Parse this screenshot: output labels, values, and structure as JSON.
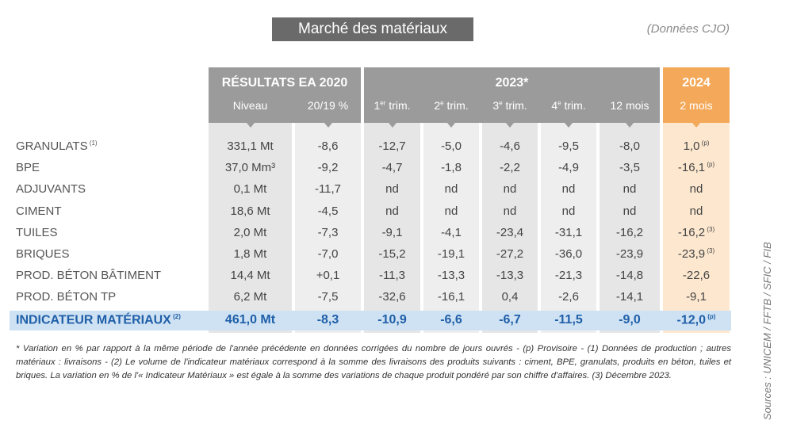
{
  "title": "Marché des matériaux",
  "source_note": "(Données CJO)",
  "sources": "Sources : UNICEM / FFTB / SFIC / FIB",
  "table": {
    "groups": [
      {
        "title": "RÉSULTATS EA 2020",
        "columns": [
          {
            "text": "Niveau"
          },
          {
            "text": "20/19 %"
          }
        ]
      },
      {
        "title": "2023*",
        "columns": [
          {
            "text": "1",
            "sup": "er",
            "rest": " trim."
          },
          {
            "text": "2",
            "sup": "e",
            "rest": " trim."
          },
          {
            "text": "3",
            "sup": "e",
            "rest": " trim."
          },
          {
            "text": "4",
            "sup": "e",
            "rest": " trim."
          },
          {
            "text": "12 mois"
          }
        ]
      },
      {
        "title": "2024",
        "columns": [
          {
            "text": "2 mois"
          }
        ]
      }
    ],
    "rows": [
      {
        "label": "GRANULATS",
        "label_note": "(1)",
        "cells": [
          "331,1 Mt",
          "-8,6",
          "-12,7",
          "-5,0",
          "-4,6",
          "-9,5",
          "-8,0",
          "1,0"
        ],
        "note": "(p)"
      },
      {
        "label": "BPE",
        "cells": [
          "37,0 Mm³",
          "-9,2",
          "-4,7",
          "-1,8",
          "-2,2",
          "-4,9",
          "-3,5",
          "-16,1"
        ],
        "note": "(p)"
      },
      {
        "label": "ADJUVANTS",
        "cells": [
          "0,1 Mt",
          "-11,7",
          "nd",
          "nd",
          "nd",
          "nd",
          "nd",
          "nd"
        ]
      },
      {
        "label": "CIMENT",
        "cells": [
          "18,6 Mt",
          "-4,5",
          "nd",
          "nd",
          "nd",
          "nd",
          "nd",
          "nd"
        ]
      },
      {
        "label": "TUILES",
        "cells": [
          "2,0 Mt",
          "-7,3",
          "-9,1",
          "-4,1",
          "-23,4",
          "-31,1",
          "-16,2",
          "-16,2"
        ],
        "note": "(3)"
      },
      {
        "label": "BRIQUES",
        "cells": [
          "1,8 Mt",
          "-7,0",
          "-15,2",
          "-19,1",
          "-27,2",
          "-36,0",
          "-23,9",
          "-23,9"
        ],
        "note": "(3)"
      },
      {
        "label": "PROD. BÉTON BÂTIMENT",
        "cells": [
          "14,4 Mt",
          "+0,1",
          "-11,3",
          "-13,3",
          "-13,3",
          "-21,3",
          "-14,8",
          "-22,6"
        ]
      },
      {
        "label": "PROD. BÉTON TP",
        "cells": [
          "6,2 Mt",
          "-7,5",
          "-32,6",
          "-16,1",
          "0,4",
          "-2,6",
          "-14,1",
          "-9,1"
        ]
      }
    ],
    "total": {
      "label": "INDICATEUR MATÉRIAUX",
      "label_note": "(2)",
      "cells": [
        "461,0 Mt",
        "-8,3",
        "-10,9",
        "-6,6",
        "-6,7",
        "-11,5",
        "-9,0",
        "-12,0"
      ],
      "note": "(p)"
    }
  },
  "footnote": "* Variation en % par rapport à la même période de l'année précédente en données corrigées du nombre de jours ouvrés - (p) Provisoire - (1) Données de production ; autres matériaux : livraisons - (2) Le volume de l'indicateur matériaux correspond à la somme des livraisons des produits suivants : ciment, BPE, granulats, produits en béton, tuiles et briques. La variation en % de l'« Indicateur Matériaux » est égale à la somme des variations de chaque produit pondéré par son chiffre d'affaires. (3) Décembre 2023."
}
